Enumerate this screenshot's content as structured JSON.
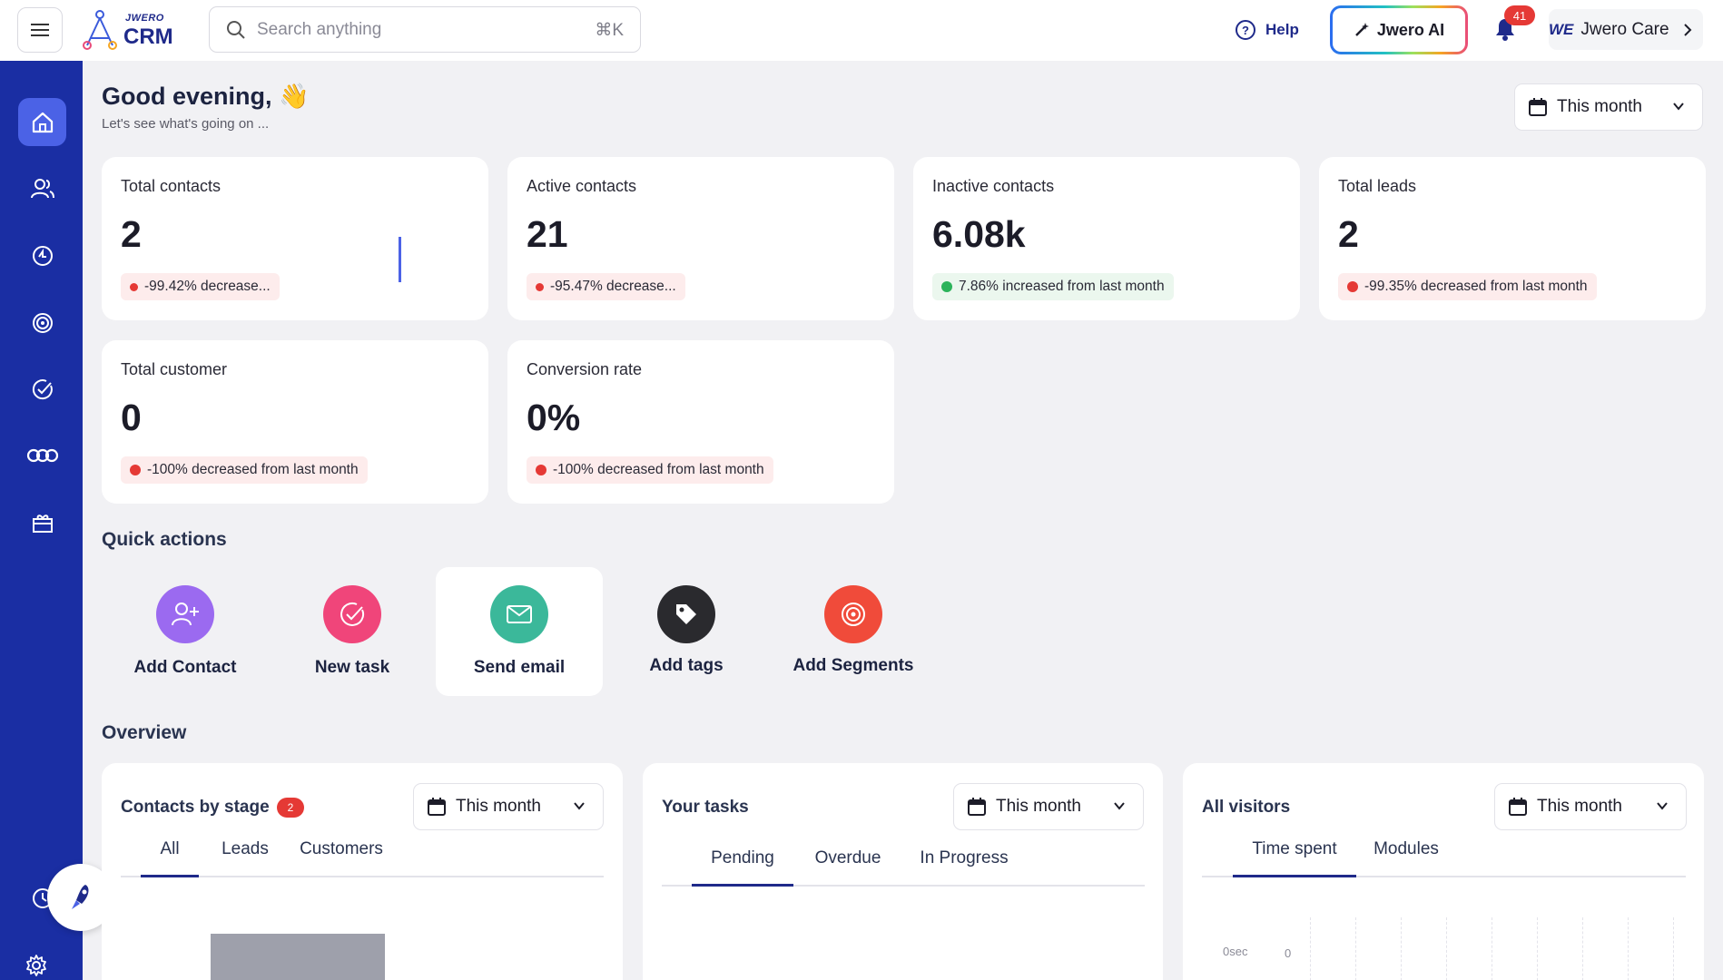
{
  "header": {
    "logo_top": "JWERO",
    "logo_bottom": "CRM",
    "search": {
      "placeholder": "Search anything",
      "shortcut": "⌘K"
    },
    "help_label": "Help",
    "ai_label": "Jwero AI",
    "notification_count": "41",
    "care_logo": "WE",
    "care_label": "Jwero Care"
  },
  "greeting": {
    "title": "Good evening, 👋",
    "subtitle": "Let's see what's going on ..."
  },
  "period_filter": "This month",
  "stats": [
    {
      "label": "Total contacts",
      "value": "2",
      "trend": "-99.42% decrease...",
      "direction": "down"
    },
    {
      "label": "Active contacts",
      "value": "21",
      "trend": "-95.47% decrease...",
      "direction": "down"
    },
    {
      "label": "Inactive contacts",
      "value": "6.08k",
      "trend": "7.86% increased from last month",
      "direction": "up"
    },
    {
      "label": "Total leads",
      "value": "2",
      "trend": "-99.35% decreased from last month",
      "direction": "down"
    },
    {
      "label": "Total customer",
      "value": "0",
      "trend": "-100% decreased from last month",
      "direction": "down"
    },
    {
      "label": "Conversion rate",
      "value": "0%",
      "trend": "-100% decreased from last month",
      "direction": "down"
    }
  ],
  "quick_actions": {
    "title": "Quick actions",
    "items": [
      {
        "label": "Add Contact",
        "icon": "add-user-icon",
        "color": "#9b6af0"
      },
      {
        "label": "New task",
        "icon": "check-circle-icon",
        "color": "#f0457a"
      },
      {
        "label": "Send email",
        "icon": "mail-icon",
        "color": "#3bb89a"
      },
      {
        "label": "Add tags",
        "icon": "tag-icon",
        "color": "#2a2a2e"
      },
      {
        "label": "Add Segments",
        "icon": "target-icon",
        "color": "#f04b3a"
      }
    ]
  },
  "overview": {
    "title": "Overview",
    "contacts_by_stage": {
      "title": "Contacts by stage",
      "badge": "2",
      "filter": "This month",
      "tabs": [
        "All",
        "Leads",
        "Customers"
      ]
    },
    "your_tasks": {
      "title": "Your tasks",
      "filter": "This month",
      "tabs": [
        "Pending",
        "Overdue",
        "In Progress"
      ]
    },
    "all_visitors": {
      "title": "All visitors",
      "filter": "This month",
      "tabs": [
        "Time spent",
        "Modules"
      ],
      "y_tick": "0sec",
      "x_tick": "0"
    }
  },
  "colors": {
    "sidebar": "#1a2ea3",
    "brand": "#1f2a8a",
    "danger": "#e53935",
    "success": "#2bb35a"
  }
}
